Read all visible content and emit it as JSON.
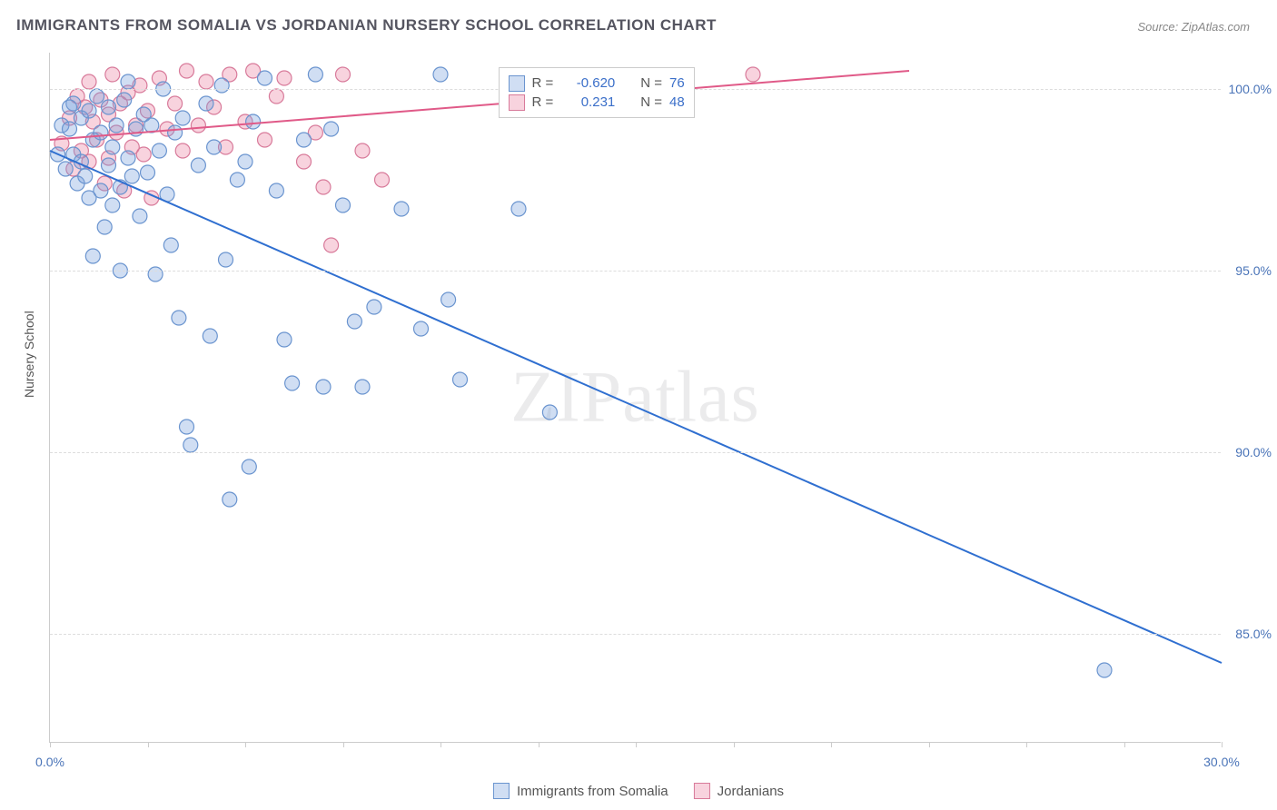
{
  "title": "IMMIGRANTS FROM SOMALIA VS JORDANIAN NURSERY SCHOOL CORRELATION CHART",
  "source": "Source: ZipAtlas.com",
  "watermark": "ZIPatlas",
  "yaxis_label": "Nursery School",
  "chart": {
    "type": "scatter-with-regression",
    "background_color": "#ffffff",
    "grid_color": "#dddddd",
    "axis_color": "#cccccc",
    "xlim": [
      0,
      30
    ],
    "ylim": [
      82,
      101
    ],
    "xtick_positions": [
      0,
      2.5,
      5,
      7.5,
      10,
      12.5,
      15,
      17.5,
      20,
      22.5,
      25,
      27.5,
      30
    ],
    "xtick_labels": {
      "0": "0.0%",
      "30": "30.0%"
    },
    "ytick_positions": [
      85,
      90,
      95,
      100
    ],
    "ytick_labels": {
      "85": "85.0%",
      "90": "90.0%",
      "95": "95.0%",
      "100": "100.0%"
    },
    "marker_radius": 8,
    "marker_stroke_width": 1.2,
    "line_width": 2,
    "label_color": "#4a74b8",
    "label_fontsize": 14
  },
  "series": [
    {
      "name": "Immigrants from Somalia",
      "fill": "rgba(120,160,220,0.35)",
      "stroke": "#6a94cf",
      "line_color": "#2f6fd0",
      "R": "-0.620",
      "N": "76",
      "reg_line": {
        "x1": 0,
        "y1": 98.3,
        "x2": 30,
        "y2": 84.2
      },
      "points": [
        [
          0.2,
          98.2
        ],
        [
          0.3,
          99.0
        ],
        [
          0.4,
          97.8
        ],
        [
          0.5,
          98.9
        ],
        [
          0.6,
          98.2
        ],
        [
          0.6,
          99.6
        ],
        [
          0.7,
          97.4
        ],
        [
          0.8,
          98.0
        ],
        [
          0.8,
          99.2
        ],
        [
          0.9,
          97.6
        ],
        [
          1.0,
          99.4
        ],
        [
          1.0,
          97.0
        ],
        [
          1.1,
          98.6
        ],
        [
          1.1,
          95.4
        ],
        [
          1.2,
          99.8
        ],
        [
          1.3,
          97.2
        ],
        [
          1.3,
          98.8
        ],
        [
          1.4,
          96.2
        ],
        [
          1.5,
          99.5
        ],
        [
          1.5,
          97.9
        ],
        [
          1.6,
          98.4
        ],
        [
          1.6,
          96.8
        ],
        [
          1.7,
          99.0
        ],
        [
          1.8,
          97.3
        ],
        [
          1.8,
          95.0
        ],
        [
          1.9,
          99.7
        ],
        [
          2.0,
          98.1
        ],
        [
          2.0,
          100.2
        ],
        [
          2.1,
          97.6
        ],
        [
          2.2,
          98.9
        ],
        [
          2.3,
          96.5
        ],
        [
          2.4,
          99.3
        ],
        [
          2.5,
          97.7
        ],
        [
          2.6,
          99.0
        ],
        [
          2.7,
          94.9
        ],
        [
          2.8,
          98.3
        ],
        [
          2.9,
          100.0
        ],
        [
          3.0,
          97.1
        ],
        [
          3.1,
          95.7
        ],
        [
          3.2,
          98.8
        ],
        [
          3.3,
          93.7
        ],
        [
          3.4,
          99.2
        ],
        [
          3.5,
          90.7
        ],
        [
          3.6,
          90.2
        ],
        [
          3.8,
          97.9
        ],
        [
          4.0,
          99.6
        ],
        [
          4.1,
          93.2
        ],
        [
          4.2,
          98.4
        ],
        [
          4.4,
          100.1
        ],
        [
          4.5,
          95.3
        ],
        [
          4.6,
          88.7
        ],
        [
          4.8,
          97.5
        ],
        [
          5.0,
          98.0
        ],
        [
          5.1,
          89.6
        ],
        [
          5.2,
          99.1
        ],
        [
          5.5,
          100.3
        ],
        [
          5.8,
          97.2
        ],
        [
          6.0,
          93.1
        ],
        [
          6.2,
          91.9
        ],
        [
          6.5,
          98.6
        ],
        [
          6.8,
          100.4
        ],
        [
          7.0,
          91.8
        ],
        [
          7.2,
          98.9
        ],
        [
          7.5,
          96.8
        ],
        [
          7.8,
          93.6
        ],
        [
          8.0,
          91.8
        ],
        [
          8.3,
          94.0
        ],
        [
          9.0,
          96.7
        ],
        [
          9.5,
          93.4
        ],
        [
          10.0,
          100.4
        ],
        [
          10.2,
          94.2
        ],
        [
          10.5,
          92.0
        ],
        [
          12.0,
          96.7
        ],
        [
          12.8,
          91.1
        ],
        [
          27.0,
          84.0
        ],
        [
          0.5,
          99.5
        ]
      ]
    },
    {
      "name": "Jordanians",
      "fill": "rgba(235,130,160,0.35)",
      "stroke": "#d87a9a",
      "line_color": "#e05a88",
      "R": "0.231",
      "N": "48",
      "reg_line": {
        "x1": 0,
        "y1": 98.6,
        "x2": 22,
        "y2": 100.5
      },
      "points": [
        [
          0.3,
          98.5
        ],
        [
          0.5,
          99.2
        ],
        [
          0.6,
          97.8
        ],
        [
          0.7,
          99.8
        ],
        [
          0.8,
          98.3
        ],
        [
          0.9,
          99.5
        ],
        [
          1.0,
          98.0
        ],
        [
          1.0,
          100.2
        ],
        [
          1.1,
          99.1
        ],
        [
          1.2,
          98.6
        ],
        [
          1.3,
          99.7
        ],
        [
          1.4,
          97.4
        ],
        [
          1.5,
          99.3
        ],
        [
          1.5,
          98.1
        ],
        [
          1.6,
          100.4
        ],
        [
          1.7,
          98.8
        ],
        [
          1.8,
          99.6
        ],
        [
          1.9,
          97.2
        ],
        [
          2.0,
          99.9
        ],
        [
          2.1,
          98.4
        ],
        [
          2.2,
          99.0
        ],
        [
          2.3,
          100.1
        ],
        [
          2.4,
          98.2
        ],
        [
          2.5,
          99.4
        ],
        [
          2.6,
          97.0
        ],
        [
          2.8,
          100.3
        ],
        [
          3.0,
          98.9
        ],
        [
          3.2,
          99.6
        ],
        [
          3.4,
          98.3
        ],
        [
          3.5,
          100.5
        ],
        [
          3.8,
          99.0
        ],
        [
          4.0,
          100.2
        ],
        [
          4.2,
          99.5
        ],
        [
          4.5,
          98.4
        ],
        [
          4.6,
          100.4
        ],
        [
          5.0,
          99.1
        ],
        [
          5.2,
          100.5
        ],
        [
          5.5,
          98.6
        ],
        [
          5.8,
          99.8
        ],
        [
          6.0,
          100.3
        ],
        [
          6.5,
          98.0
        ],
        [
          6.8,
          98.8
        ],
        [
          7.0,
          97.3
        ],
        [
          7.5,
          100.4
        ],
        [
          7.2,
          95.7
        ],
        [
          8.0,
          98.3
        ],
        [
          8.5,
          97.5
        ],
        [
          18.0,
          100.4
        ]
      ]
    }
  ],
  "legend_top": {
    "r_label": "R =",
    "n_label": "N ="
  },
  "legend_bottom": {}
}
